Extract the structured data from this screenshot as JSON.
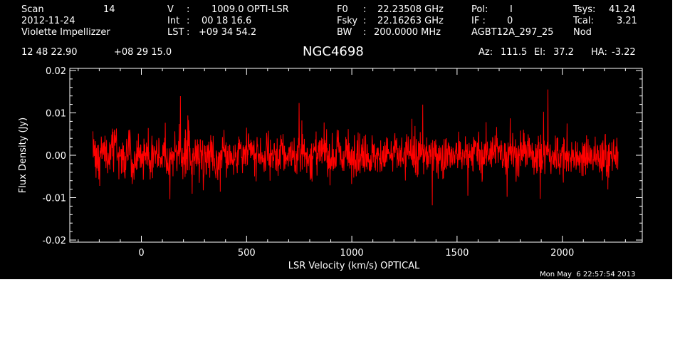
{
  "header": {
    "scan_label": "Scan",
    "scan_value": "14",
    "date": "2012-11-24",
    "observer": "Violette Impellizzer",
    "v_label": "V",
    "v_value": "1009.0 OPTI-LSR",
    "int_label": "Int",
    "int_value": "00 18 16.6",
    "lst_label": "LST",
    "lst_value": "+09 34 54.2",
    "f0_label": "F0",
    "f0_value": "22.23508 GHz",
    "fsky_label": "Fsky",
    "fsky_value": "22.16263 GHz",
    "bw_label": "BW",
    "bw_value": "200.0000 MHz",
    "pol_label": "Pol:",
    "pol_value": "I",
    "if_label": "IF :",
    "if_value": "0",
    "project": "AGBT12A_297_25",
    "tsys_label": "Tsys:",
    "tsys_value": "41.24",
    "tcal_label": "Tcal:",
    "tcal_value": "3.21",
    "mode": "Nod",
    "ra": "12 48 22.90",
    "dec": "+08 29 15.0",
    "source": "NGC4698",
    "az_label": "Az:",
    "az_value": "111.5",
    "el_label": "El:",
    "el_value": "37.2",
    "ha_label": "HA:",
    "ha_value": "-3.22",
    "timestamp": "Mon May  6 22:57:54 2013"
  },
  "colors": {
    "background": "#000000",
    "axes": "#ffffff",
    "trace": "#ff0000"
  },
  "chart_data": {
    "type": "line",
    "title": "NGC4698",
    "xlabel": "LSR Velocity (km/s) OPTICAL",
    "ylabel": "Flux Density (Jy)",
    "xlim": [
      -340,
      2380
    ],
    "ylim": [
      -0.0205,
      0.0205
    ],
    "x_ticks": [
      0,
      500,
      1000,
      1500,
      2000
    ],
    "x_tick_labels": [
      "0",
      "500",
      "1000",
      "1500",
      "2000"
    ],
    "y_ticks": [
      -0.02,
      -0.01,
      0.0,
      0.01,
      0.02
    ],
    "y_tick_labels": [
      "-0.02",
      "-0.01",
      "0.00",
      "0.01",
      "0.02"
    ],
    "grid": false,
    "series": [
      {
        "color": "#ff0000",
        "x_range": [
          -230,
          2265
        ],
        "values": [
          0.0016,
          0.0008,
          -0.0021,
          0.0035,
          0.0002,
          -0.0015,
          0.0011,
          0.0024,
          -0.0007,
          0.0012,
          -0.0019,
          0.0004,
          0.0009,
          -0.0026,
          0.0013,
          0.0001,
          -0.0008,
          0.0021,
          -0.0013,
          0.0006,
          0.0003,
          -0.0017,
          0.0018,
          -0.0002,
          -0.0024,
          0.0007,
          0.0014,
          -0.0011,
          0.0002,
          -0.0005,
          0.0016,
          -0.0019,
          0.0008,
          -0.0003,
          0.0011,
          -0.0014,
          0.0005,
          0.0019,
          -0.0009,
          -0.0021,
          0.0004,
          0.0012,
          -0.0006,
          0.0009,
          -0.0016,
          0.0001,
          0.0015,
          -0.0012,
          0.0007,
          -0.0004,
          0.0013,
          -0.0018,
          0.0006,
          0.0002,
          -0.001,
          0.0017,
          -0.0007,
          0.0004,
          -0.0015,
          0.0009,
          0.0003,
          -0.0008,
          0.0012,
          -0.0003,
          -0.0017,
          0.0008,
          0.0014,
          -0.0005,
          0.0001,
          -0.0012,
          0.0019,
          -0.0009,
          0.0006,
          0.0011,
          -0.0014,
          0.0002,
          -0.0006,
          0.0016,
          -0.0011,
          0.0004,
          0.0009,
          -0.0019,
          0.0007,
          0.0013,
          -0.0002,
          -0.0008,
          0.0015,
          -0.0013,
          0.0005,
          0.0002,
          -0.0016,
          0.0011,
          -0.0004,
          0.0008,
          -0.001,
          0.0017,
          -0.0007,
          0.0003,
          -0.0012,
          0.0006,
          0.0014,
          -0.0003,
          -0.0015,
          0.0009,
          -0.0006,
          0.0012,
          -0.0009,
          0.0018,
          -0.0004,
          0.0005,
          -0.0011,
          0.0001,
          0.0016,
          -0.0013,
          0.0007,
          0.0003,
          -0.0008,
          0.0011,
          -0.0002,
          0.0013,
          0.0007,
          0.0021,
          -0.0011,
          0.0005,
          0.0008,
          0.0015,
          -0.0003,
          0.0017,
          0.0002,
          0.0004,
          -0.0006,
          0.0019,
          0.0012,
          -0.0009,
          0.0001,
          0.0014,
          0.0006,
          0.0009,
          -0.0004,
          0.0003,
          0.0011,
          -0.0012,
          0.0005,
          0.0008,
          -0.0002,
          -0.0007,
          0.0016,
          -0.0014,
          0.0004,
          0.0001,
          -0.0009,
          0.0012,
          -0.0017,
          0.0006,
          -0.0003,
          -0.0011,
          0.0007,
          0.0002,
          -0.0015,
          0.0009,
          -0.0006,
          0.0004,
          -0.0012,
          0.0001,
          0.0008,
          -0.0008
        ]
      }
    ]
  }
}
